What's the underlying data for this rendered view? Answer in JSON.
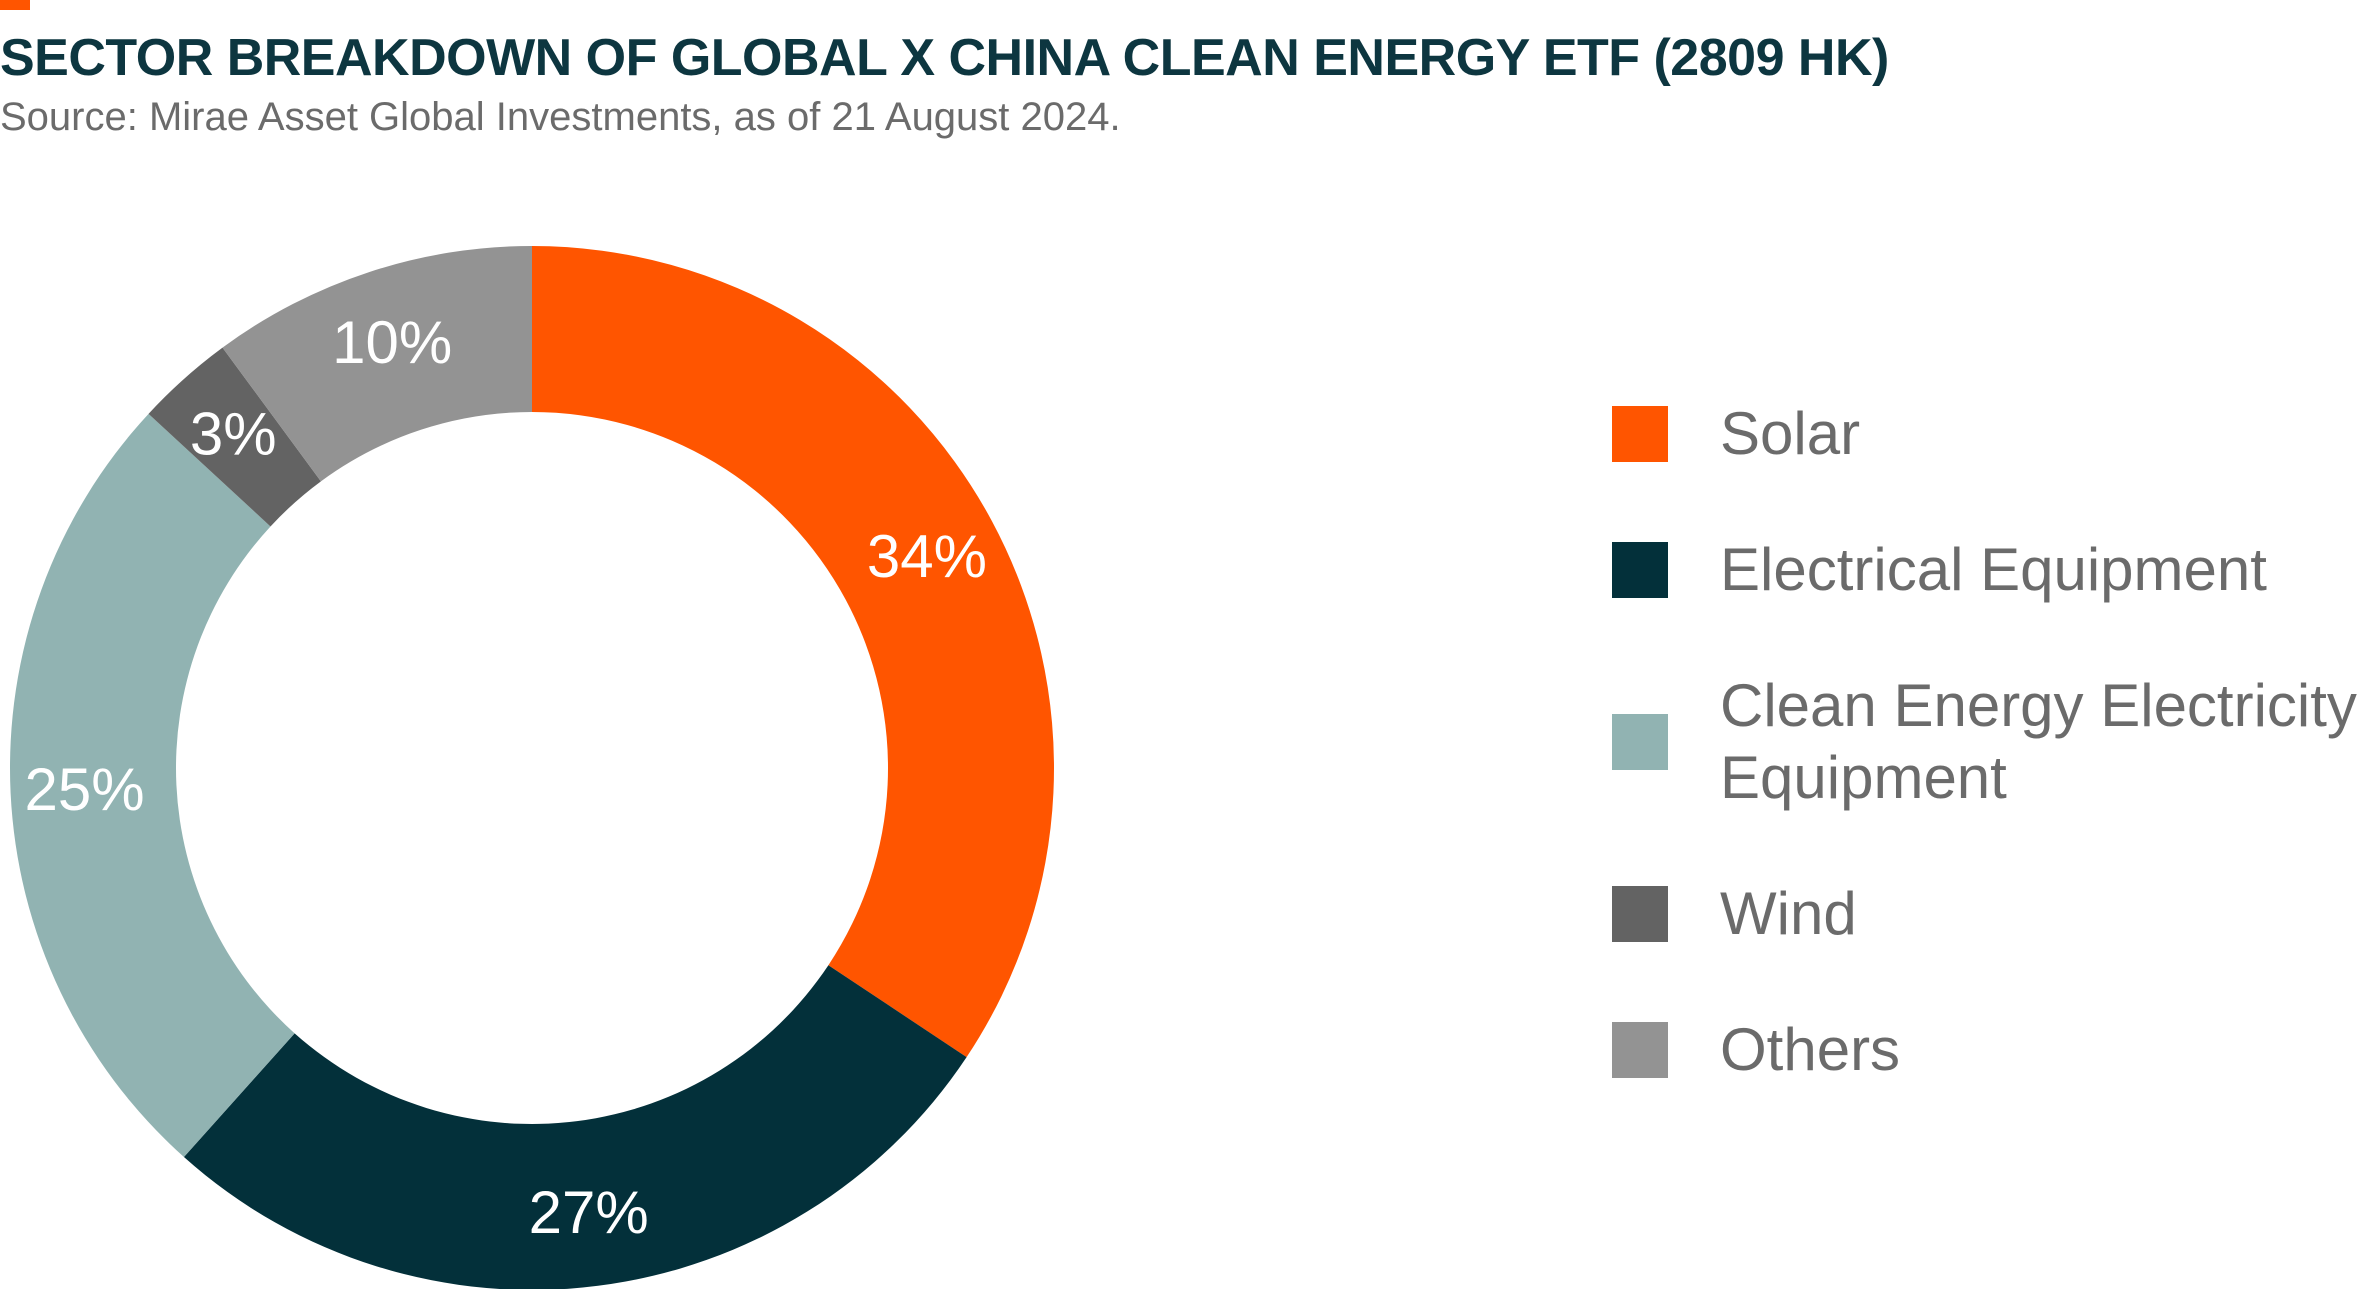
{
  "header": {
    "title": "SECTOR BREAKDOWN OF GLOBAL X CHINA CLEAN ENERGY ETF (2809 HK)",
    "subtitle": "Source: Mirae Asset Global Investments, as of 21 August 2024."
  },
  "colors": {
    "accent": "#ff5500",
    "title": "#0d3640",
    "text": "#6b6b6b"
  },
  "chart_data": {
    "type": "pie",
    "variant": "donut",
    "title": "SECTOR BREAKDOWN OF GLOBAL X CHINA CLEAN ENERGY ETF (2809 HK)",
    "subtitle": "Source: Mirae Asset Global Investments, as of 21 August 2024.",
    "unit": "%",
    "legend_position": "right",
    "slices": [
      {
        "name": "Solar",
        "legend_lines": [
          "Solar"
        ],
        "value": 34,
        "label": "34%",
        "color": "#ff5500"
      },
      {
        "name": "Electrical Equipment",
        "legend_lines": [
          "Electrical Equipment"
        ],
        "value": 27,
        "label": "27%",
        "color": "#03303a"
      },
      {
        "name": "Clean Energy Electricity Equipment",
        "legend_lines": [
          "Clean Energy Electricity",
          "Equipment"
        ],
        "value": 25,
        "label": "25%",
        "color": "#91b3b2"
      },
      {
        "name": "Wind",
        "legend_lines": [
          "Wind"
        ],
        "value": 3,
        "label": "3%",
        "color": "#636363"
      },
      {
        "name": "Others",
        "legend_lines": [
          "Others"
        ],
        "value": 10,
        "label": "10%",
        "color": "#939393"
      }
    ]
  }
}
